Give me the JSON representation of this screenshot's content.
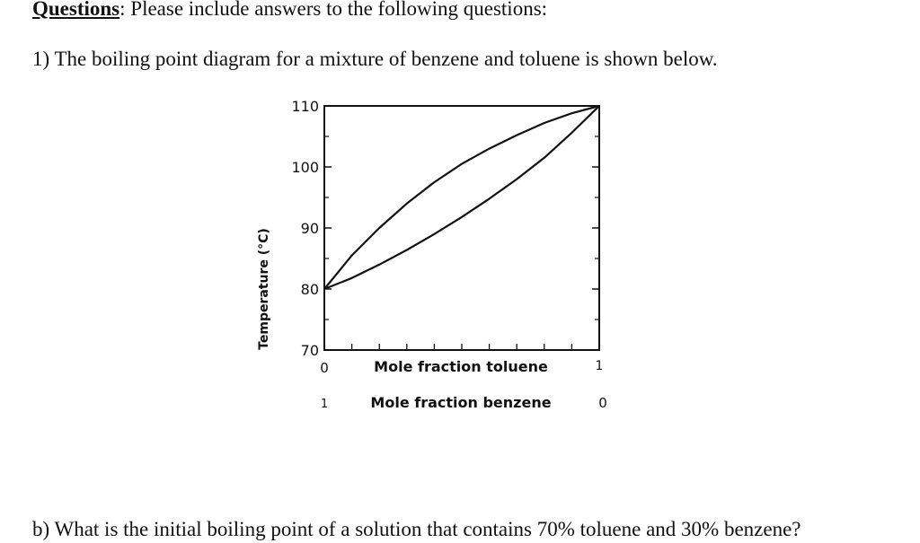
{
  "document": {
    "heading_label": "Questions",
    "heading_rest": ": Please include answers to the following questions:",
    "question_1": "1) The boiling point diagram for a mixture of benzene and toluene is shown below.",
    "question_b": "b) What is the initial boiling point of a solution that contains 70% toluene and 30% benzene?"
  },
  "chart_data": {
    "type": "line",
    "ylabel": "Temperature (°C)",
    "xlabel": "Mole fraction toluene",
    "xlabel_secondary": "Mole fraction benzene",
    "ylim": [
      70,
      110
    ],
    "xlim": [
      0,
      1
    ],
    "y_ticks": [
      70,
      80,
      90,
      100,
      110
    ],
    "y_tick_labels": [
      "70",
      "80",
      "90",
      "100",
      "110"
    ],
    "x_tick_labels": [
      "0",
      "1"
    ],
    "x2_tick_labels": [
      "1",
      "0"
    ],
    "grid": false,
    "series": [
      {
        "x": [
          0,
          0.1,
          0.2,
          0.3,
          0.4,
          0.5,
          0.6,
          0.7,
          0.8,
          0.9,
          1.0
        ],
        "y": [
          80,
          81.8,
          84.0,
          86.4,
          89.0,
          91.8,
          94.8,
          98.0,
          101.5,
          105.6,
          110
        ]
      },
      {
        "x": [
          0,
          0.1,
          0.2,
          0.3,
          0.4,
          0.5,
          0.6,
          0.7,
          0.8,
          0.9,
          1.0
        ],
        "y": [
          80,
          85.5,
          90.0,
          94.0,
          97.5,
          100.5,
          103.0,
          105.2,
          107.2,
          108.8,
          110
        ]
      }
    ]
  }
}
